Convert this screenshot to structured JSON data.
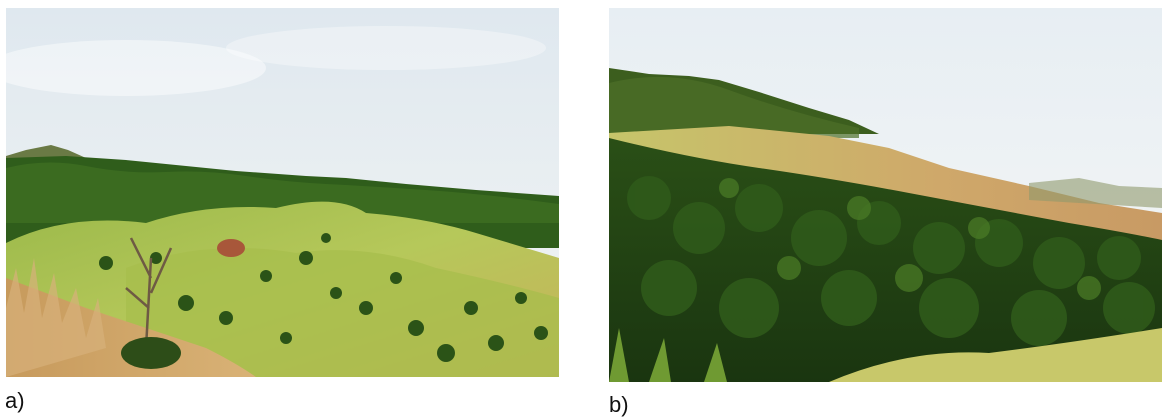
{
  "figure": {
    "panels": [
      {
        "label": "a)",
        "image": "hillside-landscape-photo-a",
        "scene_colors": {
          "sky": "#e9eef2",
          "forest": "#2f5d1b",
          "grass": "#a9bf4e",
          "dry_grass": "#c49a5a"
        }
      },
      {
        "label": "b)",
        "image": "hillside-landscape-photo-b",
        "scene_colors": {
          "sky": "#eef3f6",
          "forest": "#1f3f12",
          "grass": "#c2c86a",
          "dry_ridge": "#c89a64"
        }
      }
    ]
  }
}
